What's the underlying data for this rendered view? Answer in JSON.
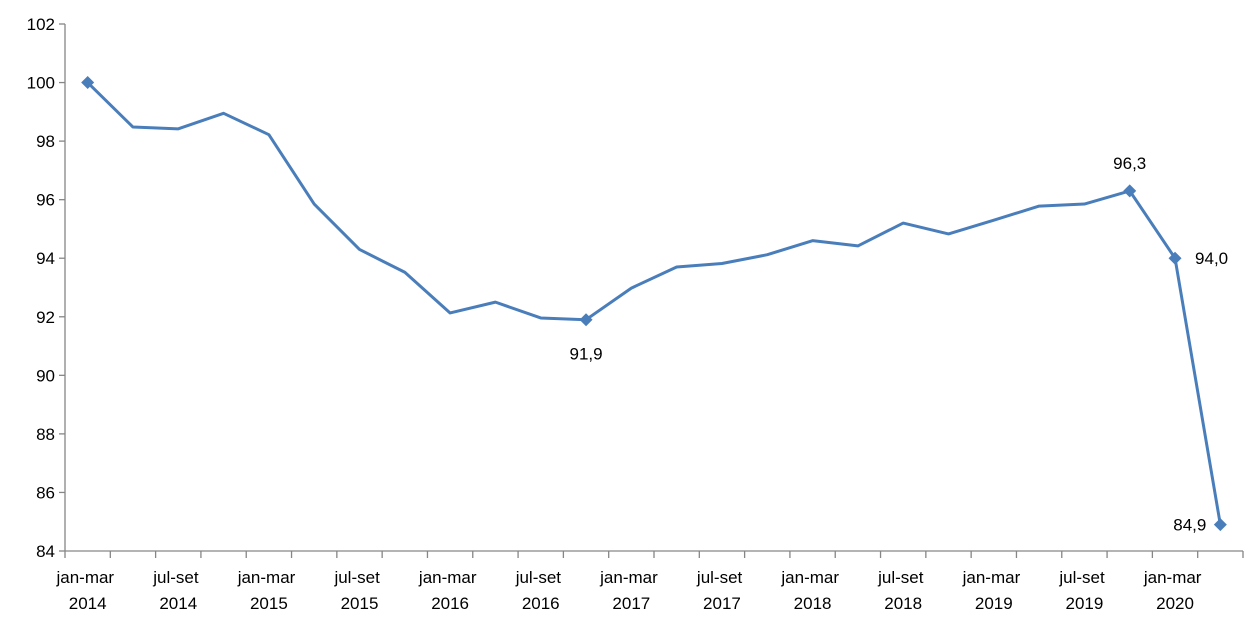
{
  "chart_data": {
    "type": "line",
    "categories": [
      "jan-mar 2014",
      null,
      "jul-set 2014",
      null,
      "jan-mar 2015",
      null,
      "jul-set 2015",
      null,
      "jan-mar 2016",
      null,
      "jul-set 2016",
      null,
      "jan-mar 2017",
      null,
      "jul-set 2017",
      null,
      "jan-mar 2018",
      null,
      "jul-set 2018",
      null,
      "jan-mar 2019",
      null,
      "jul-set 2019",
      null,
      "jan-mar 2020",
      null
    ],
    "values": [
      100,
      98.48,
      98.42,
      98.95,
      98.22,
      95.85,
      94.3,
      93.52,
      92.13,
      92.5,
      91.96,
      91.9,
      92.98,
      93.7,
      93.82,
      94.12,
      94.6,
      94.42,
      95.2,
      94.83,
      95.3,
      95.78,
      95.85,
      96.3,
      94.0,
      84.9
    ],
    "value_labels": [
      null,
      null,
      null,
      null,
      null,
      null,
      null,
      null,
      null,
      null,
      null,
      "91,9",
      null,
      null,
      null,
      null,
      null,
      null,
      null,
      null,
      null,
      null,
      null,
      "96,3",
      "94,0",
      "84,9"
    ],
    "marker_indices": [
      0,
      11,
      23,
      24,
      25
    ],
    "color": "#4a7ebb",
    "ylim": [
      84,
      102
    ],
    "yticks": [
      84,
      86,
      88,
      90,
      92,
      94,
      96,
      98,
      100,
      102
    ],
    "grid": false
  }
}
